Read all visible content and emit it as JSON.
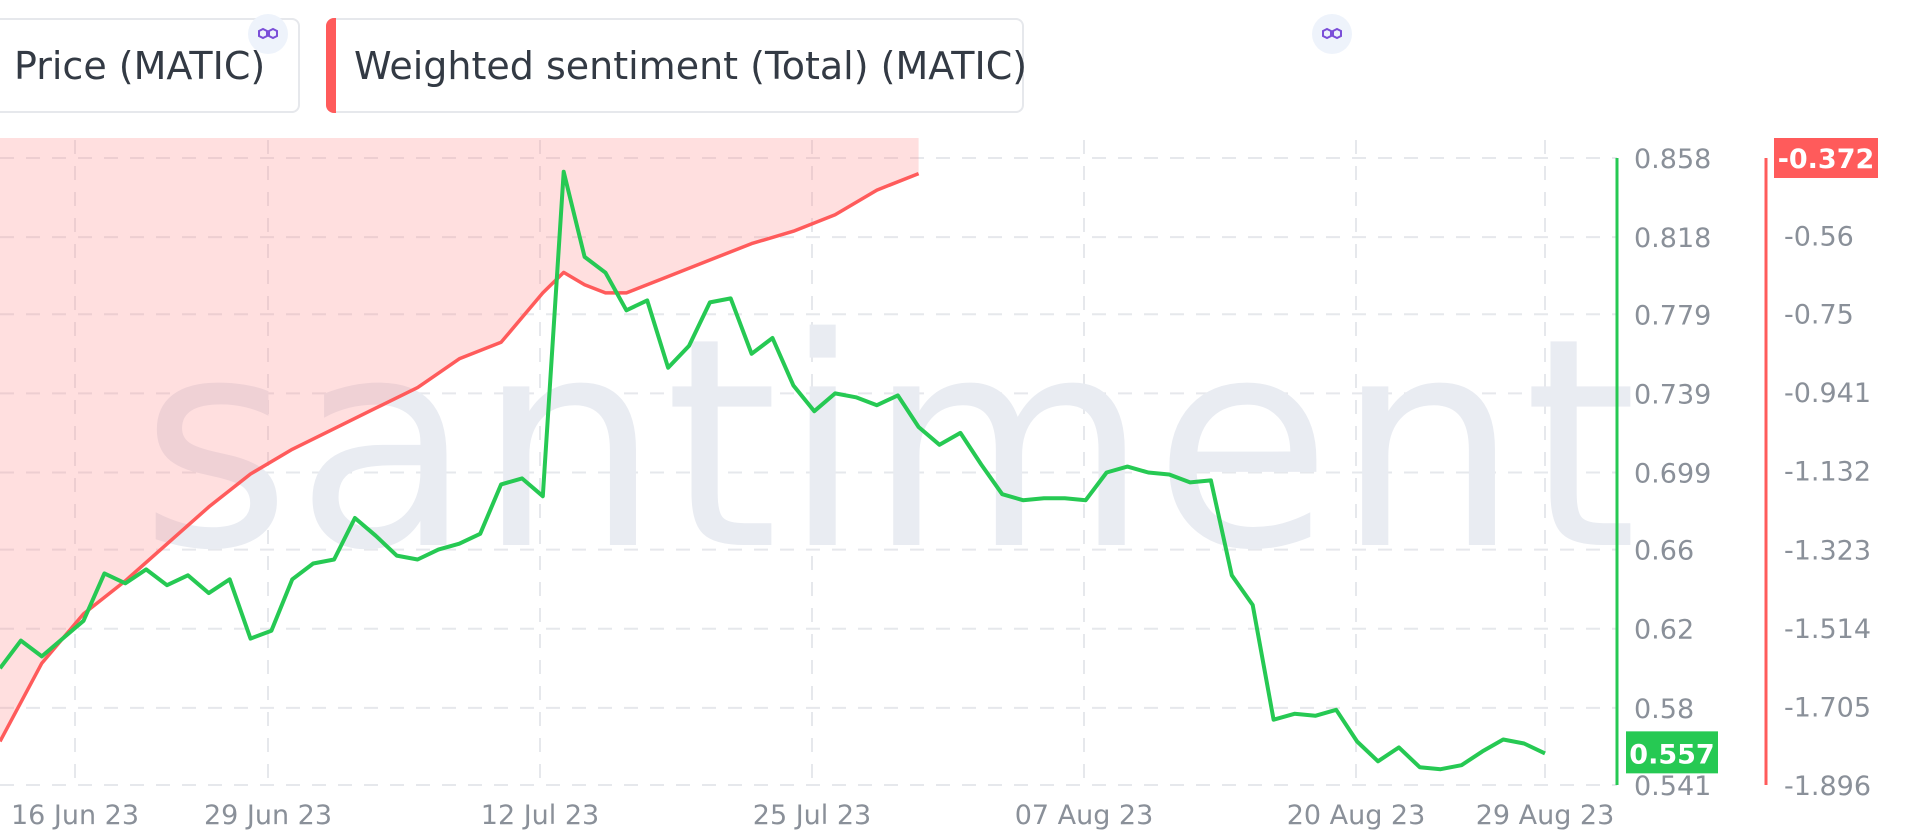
{
  "legend": {
    "price": {
      "label": "Price (MATIC)",
      "color": "#26c953"
    },
    "sentiment": {
      "label": "Weighted sentiment (Total) (MATIC)",
      "color": "#ff5b5b"
    }
  },
  "watermark": "santiment",
  "chart_data": {
    "type": "line",
    "x_labels": [
      "16 Jun 23",
      "29 Jun 23",
      "12 Jul 23",
      "25 Jul 23",
      "07 Aug 23",
      "20 Aug 23",
      "29 Aug 23"
    ],
    "x_range": [
      "2023-06-16",
      "2023-08-29"
    ],
    "y_left": {
      "ticks": [
        "0.858",
        "0.818",
        "0.779",
        "0.739",
        "0.699",
        "0.66",
        "0.62",
        "0.58",
        "0.541"
      ],
      "range": [
        0.541,
        0.858
      ],
      "current_value": "0.557",
      "color": "#26c953"
    },
    "y_right": {
      "ticks": [
        "-0.372",
        "-0.56",
        "-0.75",
        "-0.941",
        "-1.132",
        "-1.323",
        "-1.514",
        "-1.705",
        "-1.896"
      ],
      "range": [
        -1.896,
        -0.372
      ],
      "current_value": "-0.372",
      "color": "#ff5b5b"
    },
    "grid": true,
    "series": [
      {
        "name": "Price (MATIC)",
        "axis": "left",
        "color": "#26c953",
        "dates": [
          "2023-06-16",
          "2023-06-17",
          "2023-06-18",
          "2023-06-19",
          "2023-06-20",
          "2023-06-21",
          "2023-06-22",
          "2023-06-23",
          "2023-06-24",
          "2023-06-25",
          "2023-06-26",
          "2023-06-27",
          "2023-06-28",
          "2023-06-29",
          "2023-06-30",
          "2023-07-01",
          "2023-07-02",
          "2023-07-03",
          "2023-07-04",
          "2023-07-05",
          "2023-07-06",
          "2023-07-07",
          "2023-07-08",
          "2023-07-09",
          "2023-07-10",
          "2023-07-11",
          "2023-07-12",
          "2023-07-13",
          "2023-07-14",
          "2023-07-15",
          "2023-07-16",
          "2023-07-17",
          "2023-07-18",
          "2023-07-19",
          "2023-07-20",
          "2023-07-21",
          "2023-07-22",
          "2023-07-23",
          "2023-07-24",
          "2023-07-25",
          "2023-07-26",
          "2023-07-27",
          "2023-07-28",
          "2023-07-29",
          "2023-07-30",
          "2023-07-31",
          "2023-08-01",
          "2023-08-02",
          "2023-08-03",
          "2023-08-04",
          "2023-08-05",
          "2023-08-06",
          "2023-08-07",
          "2023-08-08",
          "2023-08-09",
          "2023-08-10",
          "2023-08-11",
          "2023-08-12",
          "2023-08-13",
          "2023-08-14",
          "2023-08-15",
          "2023-08-16",
          "2023-08-17",
          "2023-08-18",
          "2023-08-19",
          "2023-08-20",
          "2023-08-21",
          "2023-08-22",
          "2023-08-23",
          "2023-08-24",
          "2023-08-25",
          "2023-08-26",
          "2023-08-27",
          "2023-08-28",
          "2023-08-29"
        ],
        "values": [
          0.6,
          0.614,
          0.606,
          0.615,
          0.624,
          0.648,
          0.643,
          0.65,
          0.642,
          0.647,
          0.638,
          0.645,
          0.615,
          0.619,
          0.645,
          0.653,
          0.655,
          0.676,
          0.667,
          0.657,
          0.655,
          0.66,
          0.663,
          0.668,
          0.693,
          0.696,
          0.687,
          0.851,
          0.808,
          0.8,
          0.781,
          0.786,
          0.752,
          0.763,
          0.785,
          0.787,
          0.759,
          0.767,
          0.743,
          0.73,
          0.739,
          0.737,
          0.733,
          0.738,
          0.722,
          0.713,
          0.719,
          0.703,
          0.688,
          0.685,
          0.686,
          0.686,
          0.685,
          0.699,
          0.702,
          0.699,
          0.698,
          0.694,
          0.695,
          0.647,
          0.632,
          0.574,
          0.577,
          0.576,
          0.579,
          0.563,
          0.553,
          0.56,
          0.55,
          0.549,
          0.551,
          0.558,
          0.564,
          0.562,
          0.557
        ]
      },
      {
        "name": "Weighted sentiment (Total) (MATIC)",
        "axis": "right",
        "color": "#ff5b5b",
        "dates": [
          "2023-06-16",
          "2023-06-18",
          "2023-06-20",
          "2023-06-22",
          "2023-06-24",
          "2023-06-26",
          "2023-06-28",
          "2023-06-30",
          "2023-07-02",
          "2023-07-04",
          "2023-07-06",
          "2023-07-08",
          "2023-07-10",
          "2023-07-12",
          "2023-07-13",
          "2023-07-14",
          "2023-07-15",
          "2023-07-16",
          "2023-07-18",
          "2023-07-20",
          "2023-07-22",
          "2023-07-24",
          "2023-07-26",
          "2023-07-28",
          "2023-07-30"
        ],
        "values": [
          -1.79,
          -1.6,
          -1.48,
          -1.4,
          -1.31,
          -1.22,
          -1.14,
          -1.08,
          -1.03,
          -0.98,
          -0.93,
          -0.86,
          -0.82,
          -0.7,
          -0.65,
          -0.68,
          -0.7,
          -0.7,
          -0.66,
          -0.62,
          -0.58,
          -0.55,
          -0.51,
          -0.45,
          -0.41
        ]
      }
    ]
  }
}
